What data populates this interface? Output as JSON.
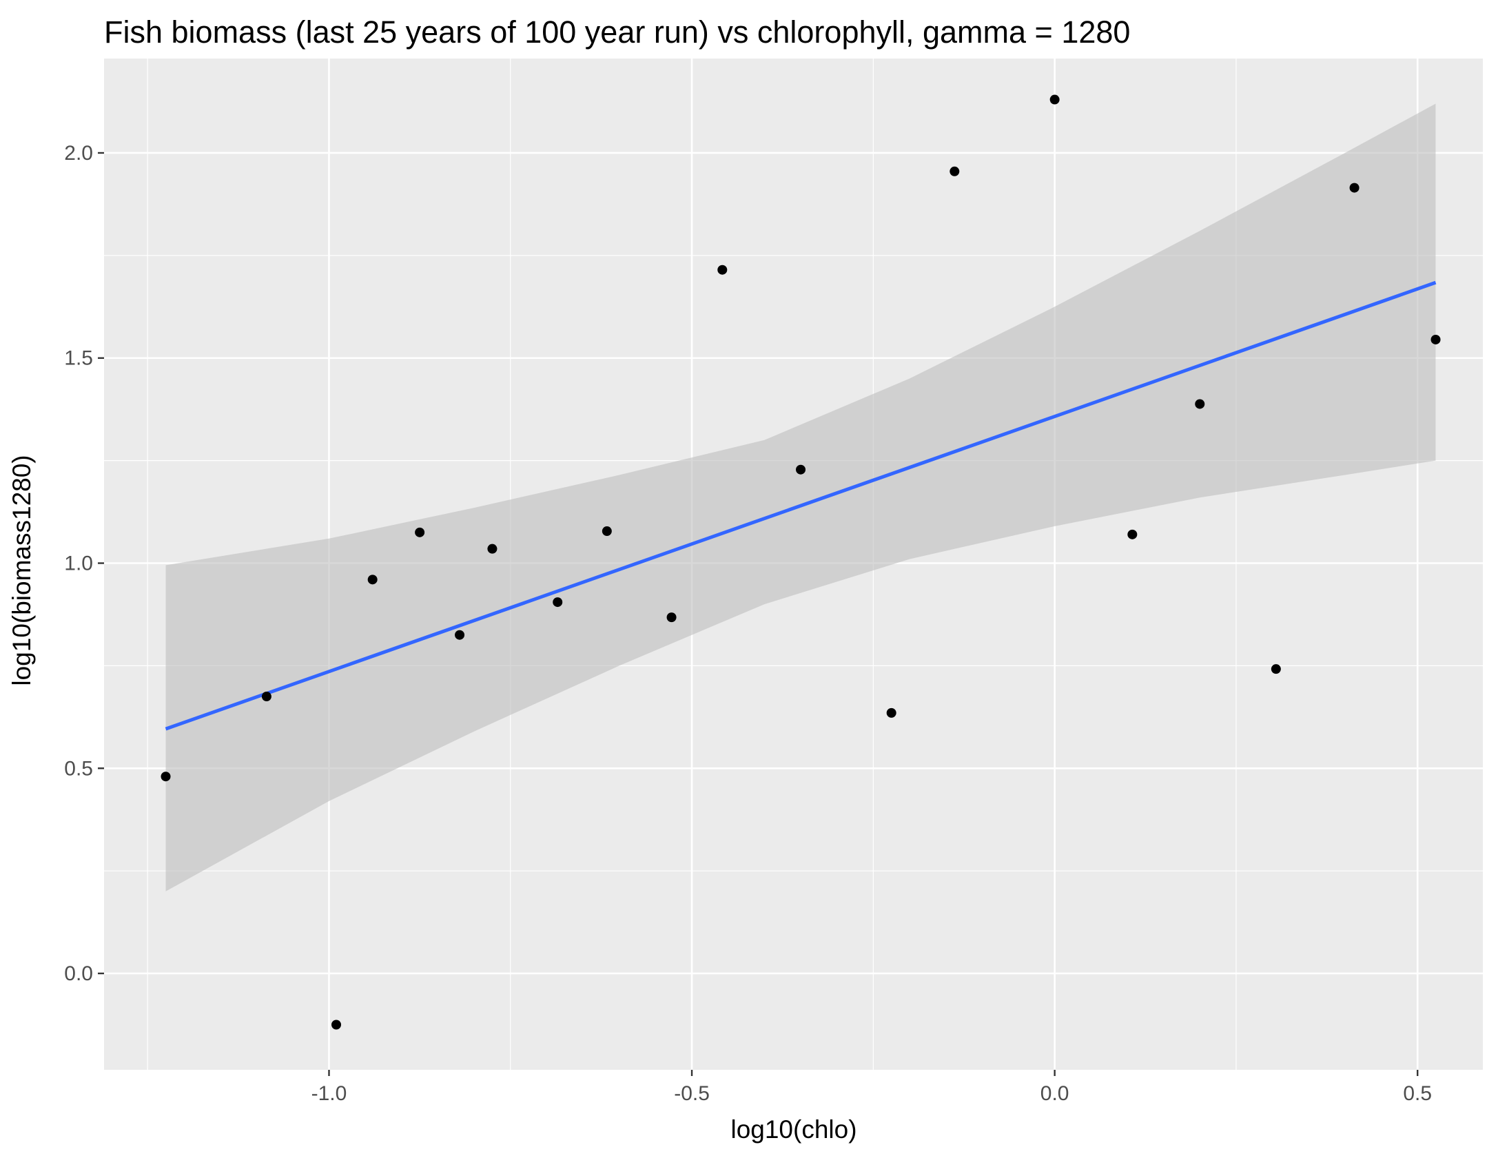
{
  "chart_data": {
    "type": "scatter",
    "title": "Fish biomass (last 25 years of 100 year run) vs chlorophyll, gamma = 1280",
    "xlabel": "log10(chlo)",
    "ylabel": "log10(biomass1280)",
    "xlim": [
      -1.31,
      0.59
    ],
    "ylim": [
      -0.235,
      2.23
    ],
    "x_ticks": [
      -1.0,
      -0.5,
      0.0,
      0.5
    ],
    "x_tick_labels": [
      "-1.0",
      "-0.5",
      "0.0",
      "0.5"
    ],
    "y_ticks": [
      0.0,
      0.5,
      1.0,
      1.5,
      2.0
    ],
    "y_tick_labels": [
      "0.0",
      "0.5",
      "1.0",
      "1.5",
      "2.0"
    ],
    "grid": true,
    "points": [
      {
        "x": -1.225,
        "y": 0.48
      },
      {
        "x": -1.086,
        "y": 0.675
      },
      {
        "x": -0.99,
        "y": -0.125
      },
      {
        "x": -0.94,
        "y": 0.96
      },
      {
        "x": -0.875,
        "y": 1.075
      },
      {
        "x": -0.82,
        "y": 0.825
      },
      {
        "x": -0.775,
        "y": 1.035
      },
      {
        "x": -0.685,
        "y": 0.905
      },
      {
        "x": -0.617,
        "y": 1.078
      },
      {
        "x": -0.528,
        "y": 0.868
      },
      {
        "x": -0.458,
        "y": 1.715
      },
      {
        "x": -0.35,
        "y": 1.228
      },
      {
        "x": -0.225,
        "y": 0.635
      },
      {
        "x": -0.138,
        "y": 1.955
      },
      {
        "x": 0.0,
        "y": 2.13
      },
      {
        "x": 0.107,
        "y": 1.07
      },
      {
        "x": 0.2,
        "y": 1.388
      },
      {
        "x": 0.305,
        "y": 0.742
      },
      {
        "x": 0.413,
        "y": 1.915
      },
      {
        "x": 0.525,
        "y": 1.545
      }
    ],
    "fit_line": {
      "x": [
        -1.225,
        0.525
      ],
      "y": [
        0.596,
        1.684
      ],
      "color": "#3366ff"
    },
    "confidence_band": {
      "x": [
        -1.225,
        -1.0,
        -0.8,
        -0.6,
        -0.4,
        -0.2,
        0.0,
        0.2,
        0.4,
        0.525
      ],
      "upper": [
        0.995,
        1.06,
        1.135,
        1.215,
        1.3,
        1.45,
        1.625,
        1.81,
        2.0,
        2.12
      ],
      "lower": [
        0.2,
        0.42,
        0.59,
        0.75,
        0.9,
        1.01,
        1.09,
        1.16,
        1.215,
        1.25
      ],
      "color": "#bebebe"
    },
    "colors": {
      "panel_background": "#ebebeb",
      "grid_major": "#ffffff",
      "points": "#000000"
    }
  }
}
